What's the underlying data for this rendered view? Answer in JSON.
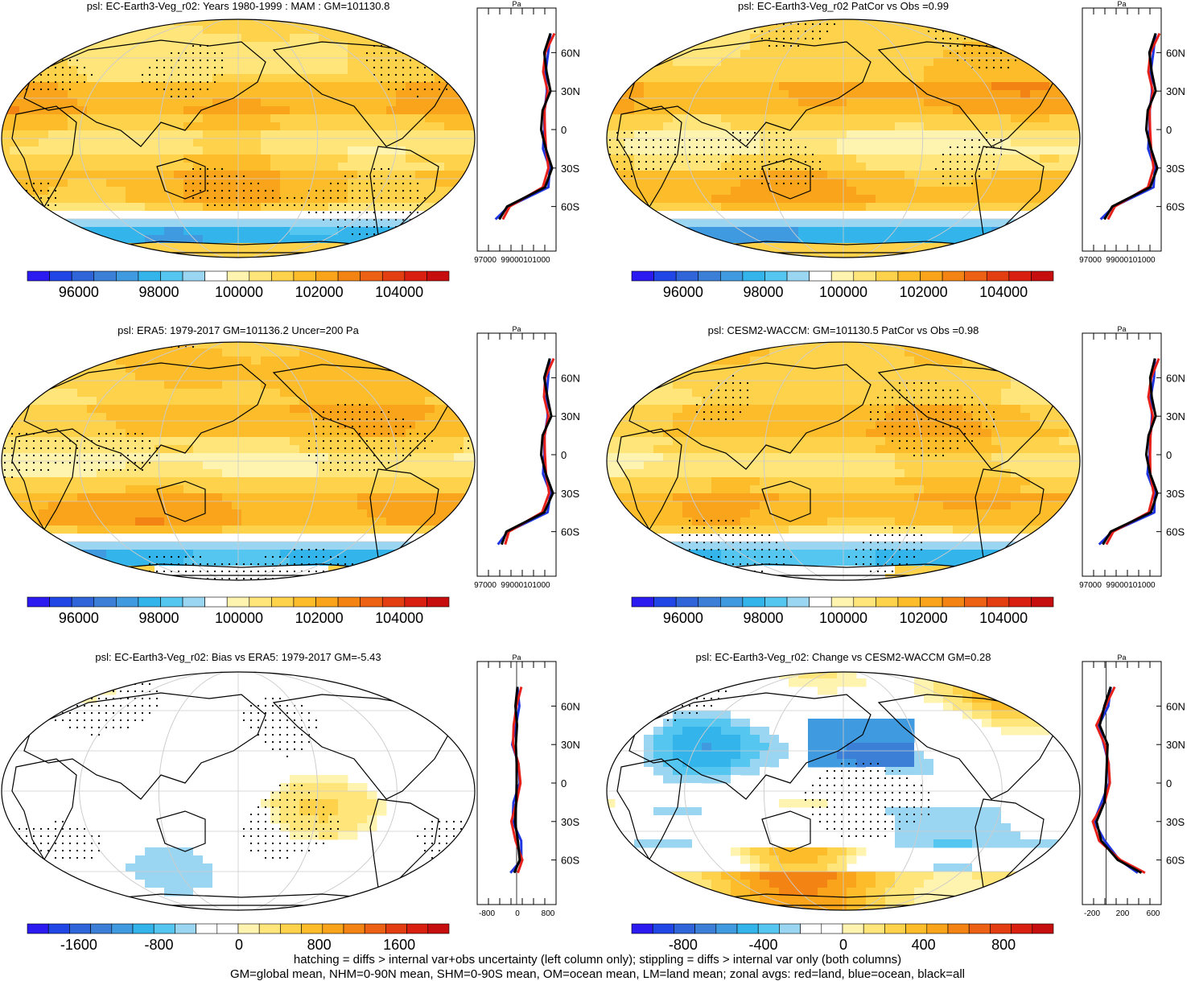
{
  "panels": [
    {
      "title": "psl: EC-Earth3-Veg_r02: Years 1980-1999 : MAM : GM=101130.8"
    },
    {
      "title": "psl: EC-Earth3-Veg_r02 PatCor vs Obs =0.99"
    },
    {
      "title": "psl: ERA5: 1979-2017 GM=101136.2 Uncer=200 Pa"
    },
    {
      "title": "psl: CESM2-WACCM: GM=101130.5 PatCor vs Obs =0.98"
    },
    {
      "title": "psl: EC-Earth3-Veg_r02: Bias vs ERA5: 1979-2017 GM=-5.43"
    },
    {
      "title": "psl: EC-Earth3-Veg_r02: Change vs CESM2-WACCM GM=0.28"
    }
  ],
  "colorbars": {
    "abs": {
      "colors": [
        "#2b1bf0",
        "#2146e6",
        "#2f65d8",
        "#3b80d6",
        "#3f9ae0",
        "#33b4ea",
        "#55c6f0",
        "#9ad6f2",
        "#ffffff",
        "#fff3b0",
        "#ffe57a",
        "#ffd24c",
        "#fdbd2b",
        "#f9a41a",
        "#f38414",
        "#ec6114",
        "#e33e12",
        "#d81f10",
        "#c70e0e"
      ],
      "labels": [
        "96000",
        "98000",
        "100000",
        "102000",
        "104000"
      ]
    },
    "bias": {
      "colors": [
        "#2b1bf0",
        "#2146e6",
        "#2f65d8",
        "#3b80d6",
        "#3f9ae0",
        "#33b4ea",
        "#55c6f0",
        "#9ad6f2",
        "#ffffff",
        "#ffffff",
        "#fff3b0",
        "#ffe57a",
        "#ffd24c",
        "#fdbd2b",
        "#f9a41a",
        "#f38414",
        "#ec6114",
        "#e33e12",
        "#d81f10",
        "#c70e0e"
      ],
      "labels": [
        "-1600",
        "-800",
        "0",
        "800",
        "1600"
      ]
    },
    "change": {
      "colors": [
        "#2b1bf0",
        "#2146e6",
        "#2f65d8",
        "#3b80d6",
        "#3f9ae0",
        "#33b4ea",
        "#55c6f0",
        "#9ad6f2",
        "#ffffff",
        "#ffffff",
        "#fff3b0",
        "#ffe57a",
        "#ffd24c",
        "#fdbd2b",
        "#f9a41a",
        "#f38414",
        "#ec6114",
        "#e33e12",
        "#d81f10",
        "#c70e0e"
      ],
      "labels": [
        "-800",
        "-400",
        "0",
        "400",
        "800"
      ]
    }
  },
  "profile_axis": {
    "unit": "Pa",
    "lat_ticks": [
      "60N",
      "30N",
      "0",
      "30S",
      "60S"
    ],
    "abs_x_ticks": [
      "97000",
      "99000101000"
    ],
    "bias_x_ticks": [
      "-800",
      "0",
      "800"
    ],
    "change_x_ticks": [
      "-200",
      "200",
      "600"
    ]
  },
  "legend_colors": {
    "land": "#e8201a",
    "ocean": "#1f35e0",
    "all": "#000000"
  },
  "footer": {
    "line1": "hatching = diffs > internal var+obs uncertainty (left column only); stippling = diffs > internal var only (both columns)",
    "line2": "GM=global mean, NHM=0-90N mean, SHM=0-90S mean, OM=ocean mean, LM=land mean; zonal avgs: red=land, blue=ocean, black=all"
  },
  "chart_data": [
    {
      "type": "heatmap",
      "title": "psl: EC-Earth3-Veg_r02: Years 1980-1999 : MAM : GM=101130.8",
      "colorbar": [
        96000,
        98000,
        100000,
        102000,
        104000
      ],
      "profile_xlim": [
        97000,
        102000
      ],
      "zonal_mean": {
        "lat": [
          75,
          60,
          45,
          30,
          15,
          0,
          -15,
          -30,
          -45,
          -60,
          -70
        ],
        "all": [
          101650,
          101250,
          101400,
          101650,
          101150,
          101050,
          101350,
          101750,
          101300,
          98900,
          98400
        ]
      }
    },
    {
      "type": "heatmap",
      "title": "psl: EC-Earth3-Veg_r02 PatCor vs Obs =0.99",
      "colorbar": [
        96000,
        98000,
        100000,
        102000,
        104000
      ],
      "profile_xlim": [
        97000,
        102000
      ],
      "zonal_mean": {
        "lat": [
          75,
          60,
          45,
          30,
          15,
          0,
          -15,
          -30,
          -45,
          -60,
          -70
        ],
        "all": [
          101650,
          101250,
          101400,
          101650,
          101150,
          101050,
          101350,
          101750,
          101300,
          98900,
          98400
        ]
      }
    },
    {
      "type": "heatmap",
      "title": "psl: ERA5: 1979-2017 GM=101136.2 Uncer=200 Pa",
      "colorbar": [
        96000,
        98000,
        100000,
        102000,
        104000
      ],
      "profile_xlim": [
        97000,
        102000
      ],
      "zonal_mean": {
        "lat": [
          75,
          60,
          45,
          30,
          15,
          0,
          -15,
          -30,
          -45,
          -60,
          -70
        ],
        "all": [
          101600,
          101250,
          101450,
          101700,
          101150,
          101050,
          101350,
          101800,
          101250,
          98850,
          98550
        ]
      }
    },
    {
      "type": "heatmap",
      "title": "psl: CESM2-WACCM: GM=101130.5 PatCor vs Obs =0.98",
      "colorbar": [
        96000,
        98000,
        100000,
        102000,
        104000
      ],
      "profile_xlim": [
        97000,
        102000
      ],
      "zonal_mean": {
        "lat": [
          75,
          60,
          45,
          30,
          15,
          0,
          -15,
          -30,
          -45,
          -60,
          -70
        ],
        "all": [
          101600,
          101300,
          101400,
          101650,
          101200,
          101050,
          101300,
          101750,
          101350,
          98800,
          98300
        ]
      }
    },
    {
      "type": "heatmap",
      "title": "psl: EC-Earth3-Veg_r02: Bias vs ERA5: 1979-2017 GM=-5.43",
      "colorbar": [
        -1600,
        -800,
        0,
        800,
        1600
      ],
      "profile_xlim": [
        -1000,
        1000
      ],
      "zonal_mean": {
        "lat": [
          75,
          60,
          45,
          30,
          15,
          0,
          -15,
          -30,
          -45,
          -60,
          -70
        ],
        "all": [
          20,
          -30,
          10,
          -20,
          0,
          0,
          -10,
          -40,
          30,
          80,
          -60
        ]
      }
    },
    {
      "type": "heatmap",
      "title": "psl: EC-Earth3-Veg_r02: Change vs CESM2-WACCM GM=0.28",
      "colorbar": [
        -800,
        -400,
        0,
        400,
        800
      ],
      "profile_xlim": [
        -300,
        700
      ],
      "zonal_mean": {
        "lat": [
          75,
          60,
          45,
          30,
          15,
          0,
          -15,
          -30,
          -45,
          -60,
          -70
        ],
        "all": [
          60,
          -20,
          -80,
          20,
          10,
          0,
          -20,
          -120,
          -60,
          150,
          450
        ]
      }
    }
  ]
}
